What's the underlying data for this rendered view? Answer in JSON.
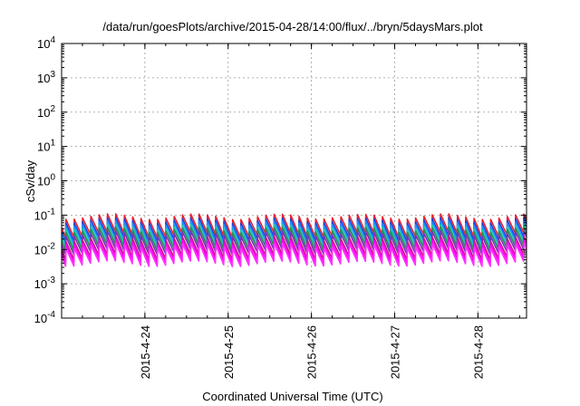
{
  "chart_data": {
    "type": "line",
    "title": "/data/run/goesPlots/archive/2015-04-28/14:00/flux/../bryn/5daysMars.plot",
    "xlabel": "Coordinated Universal Time (UTC)",
    "ylabel": "cSv/day",
    "y_scale": "log",
    "ylim": [
      0.0001,
      10000
    ],
    "y_ticks": [
      {
        "value": 0.0001,
        "base": "10",
        "exp": "-4"
      },
      {
        "value": 0.001,
        "base": "10",
        "exp": "-3"
      },
      {
        "value": 0.01,
        "base": "10",
        "exp": "-2"
      },
      {
        "value": 0.1,
        "base": "10",
        "exp": "-1"
      },
      {
        "value": 1,
        "base": "10",
        "exp": "0"
      },
      {
        "value": 10,
        "base": "10",
        "exp": "1"
      },
      {
        "value": 100,
        "base": "10",
        "exp": "2"
      },
      {
        "value": 1000,
        "base": "10",
        "exp": "3"
      },
      {
        "value": 10000,
        "base": "10",
        "exp": "4"
      }
    ],
    "x_scale": "time",
    "xlim": [
      "2015-04-23T00:00",
      "2015-04-28T14:00"
    ],
    "x_ticks": [
      "2015-4-24",
      "2015-4-25",
      "2015-4-26",
      "2015-4-27",
      "2015-4-28"
    ],
    "grid": true,
    "legend": "none",
    "pattern": {
      "cycles_per_day": 10,
      "phase_hours": 1.2,
      "peak_to_trough_ratio": 0.28,
      "daily_modulation": 0.3
    },
    "series": [
      {
        "color": "#e8212e",
        "peak": 0.11
      },
      {
        "color": "#1e3fd8",
        "peak": 0.085
      },
      {
        "color": "#1e90ff",
        "peak": 0.07
      },
      {
        "color": "#20c8a8",
        "peak": 0.055
      },
      {
        "color": "#2e8b57",
        "peak": 0.045
      },
      {
        "color": "#7b2fbe",
        "peak": 0.035
      },
      {
        "color": "#c71585",
        "peak": 0.025
      },
      {
        "color": "#ff00ff",
        "peak": 0.02
      },
      {
        "color": "#ff30ff",
        "peak": 0.016
      }
    ]
  }
}
